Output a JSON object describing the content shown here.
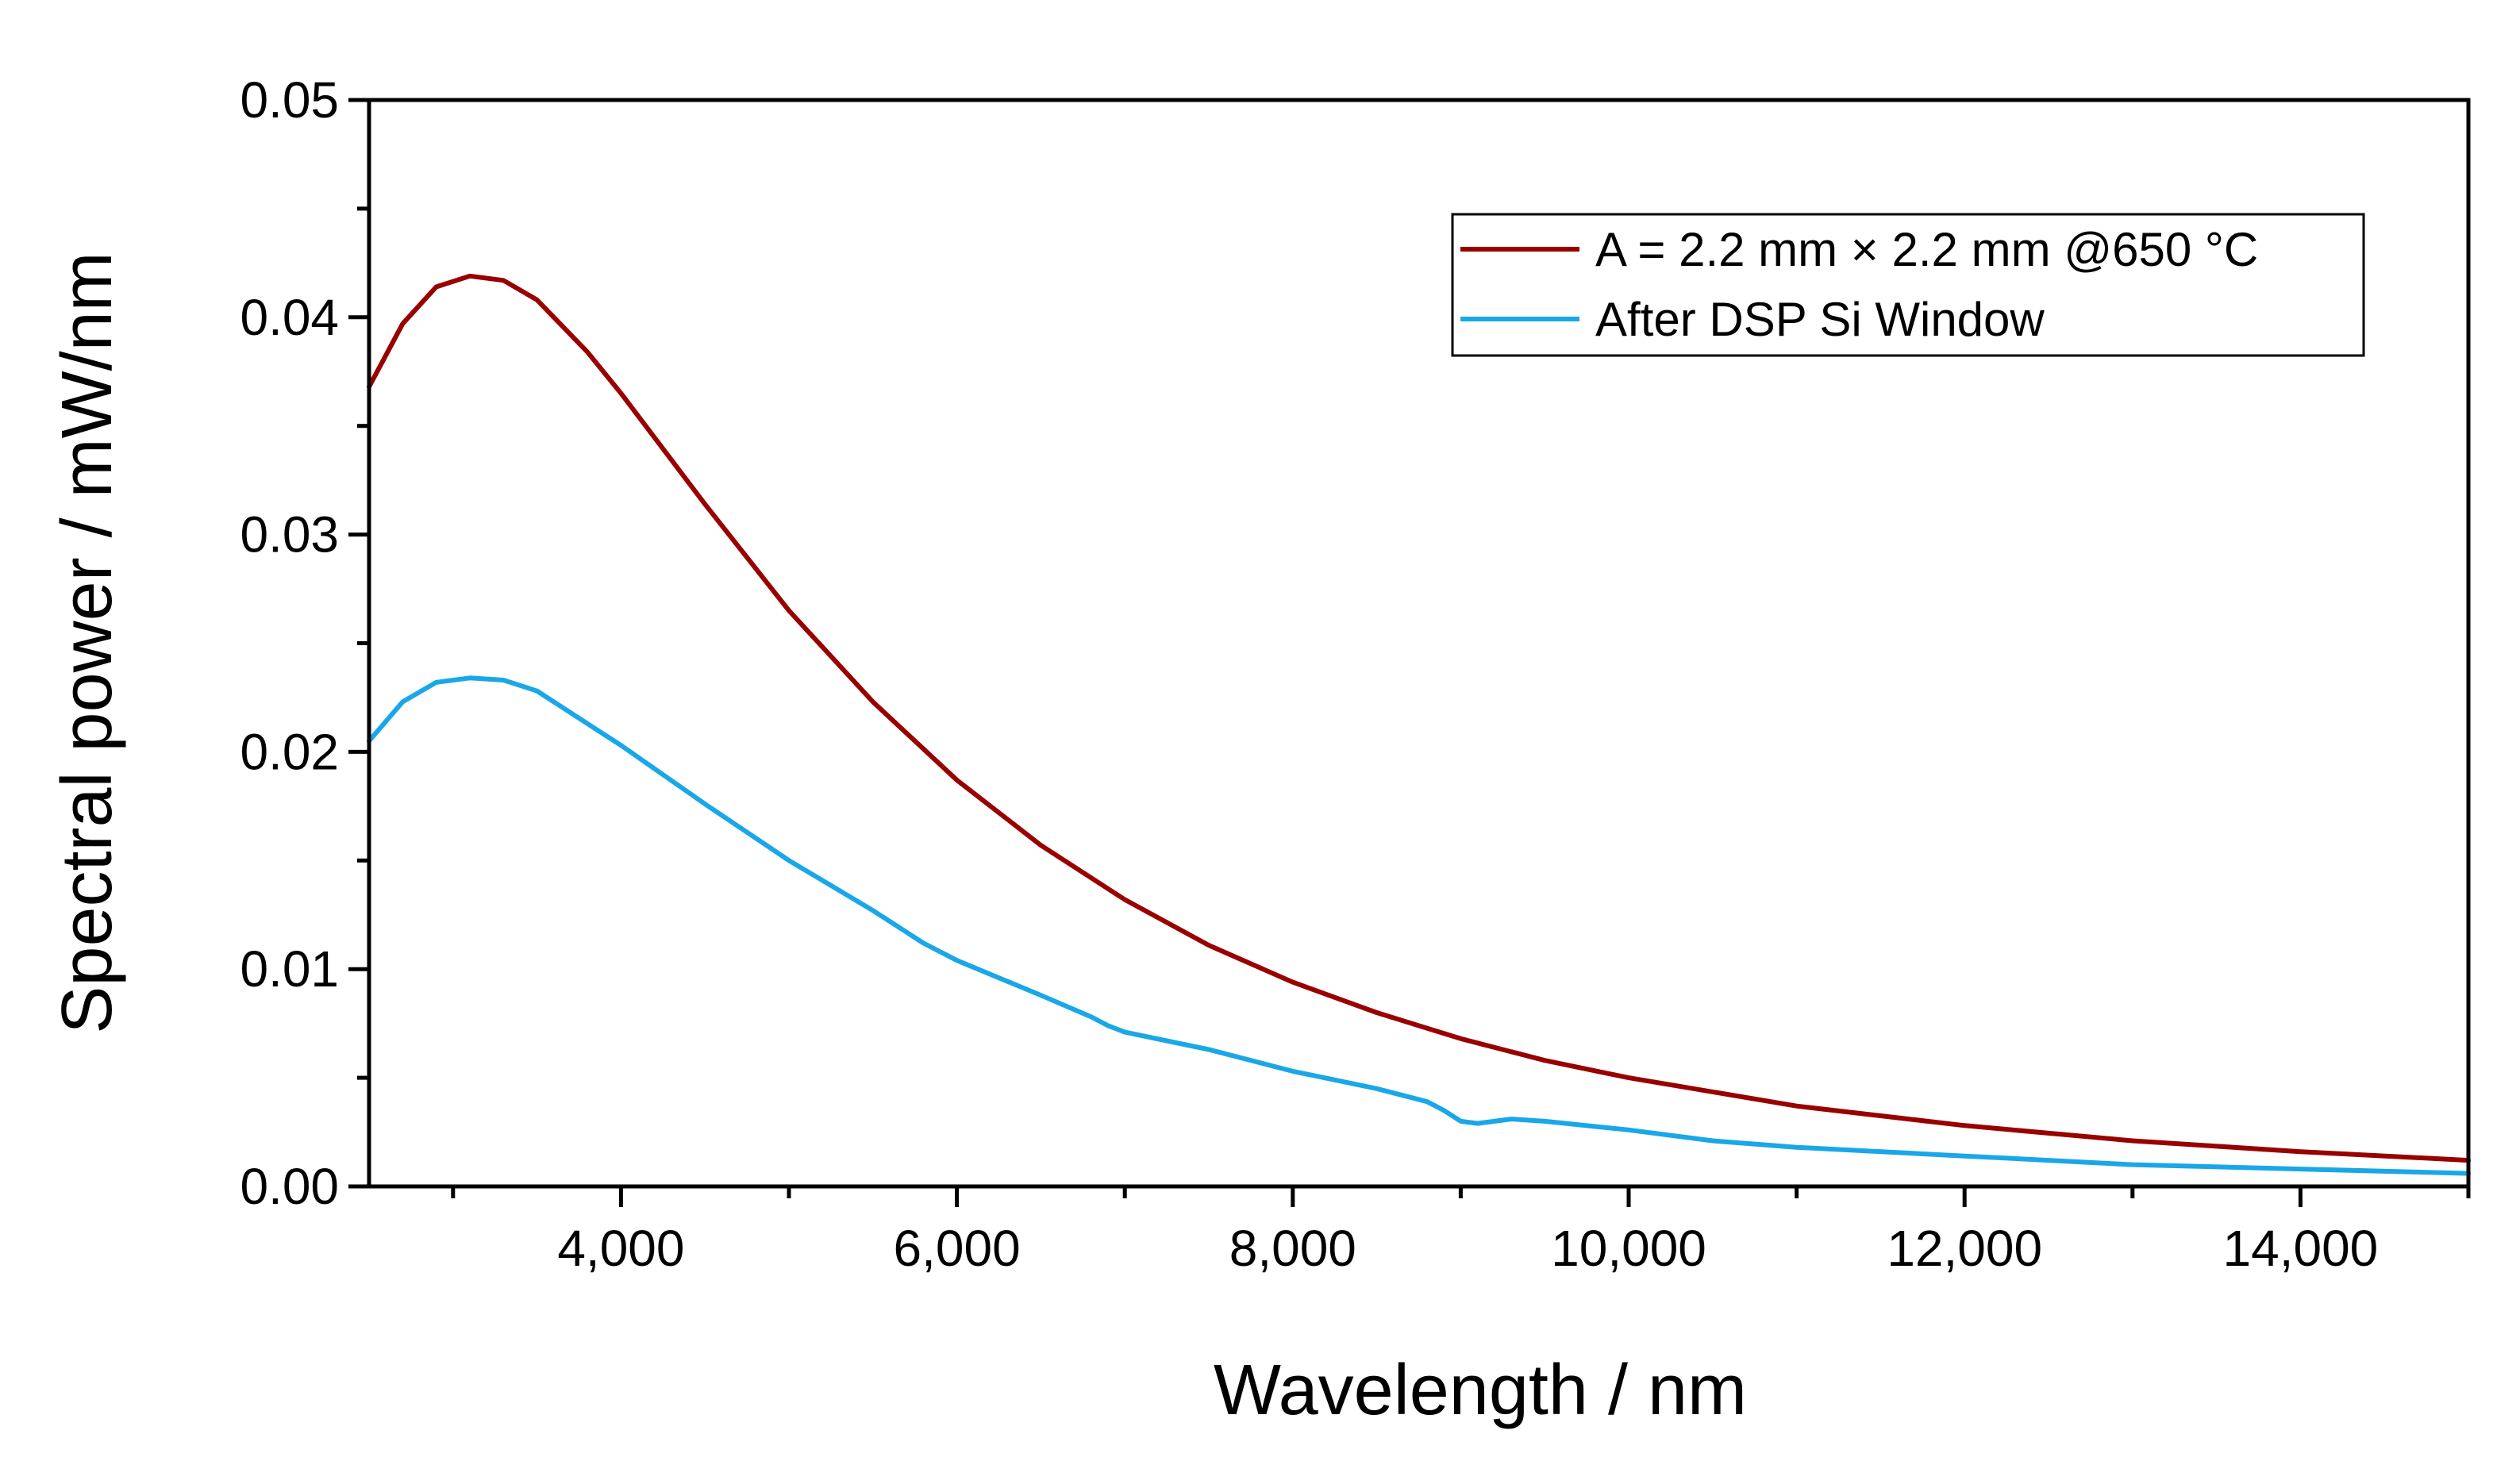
{
  "chart_data": {
    "type": "line",
    "title": "",
    "xlabel": "Wavelength / nm",
    "ylabel": "Spectral power / mW/nm",
    "xlim": [
      2500,
      15000
    ],
    "ylim": [
      0,
      0.05
    ],
    "x_major_ticks": [
      4000,
      6000,
      8000,
      10000,
      12000,
      14000
    ],
    "x_tick_labels": [
      "4,000",
      "6,000",
      "8,000",
      "10,000",
      "12,000",
      "14,000"
    ],
    "x_minor_ticks": [
      3000,
      5000,
      7000,
      9000,
      11000,
      13000,
      15000
    ],
    "y_major_ticks": [
      0,
      0.01,
      0.02,
      0.03,
      0.04,
      0.05
    ],
    "y_tick_labels": [
      "0.00",
      "0.01",
      "0.02",
      "0.03",
      "0.04",
      "0.05"
    ],
    "y_minor_ticks": [
      0.005,
      0.015,
      0.025,
      0.035,
      0.045
    ],
    "grid": false,
    "legend_position": "top-right",
    "series": [
      {
        "name": "A = 2.2 mm × 2.2 mm @650 °C",
        "color": "#990000",
        "x": [
          2500,
          2700,
          2900,
          3100,
          3300,
          3500,
          3800,
          4000,
          4500,
          5000,
          5500,
          6000,
          6500,
          7000,
          7500,
          8000,
          8500,
          9000,
          9500,
          10000,
          11000,
          12000,
          13000,
          14000,
          15000
        ],
        "y": [
          0.0368,
          0.0397,
          0.0414,
          0.0419,
          0.0417,
          0.0408,
          0.0384,
          0.0365,
          0.0314,
          0.0265,
          0.0223,
          0.0187,
          0.0157,
          0.0132,
          0.0111,
          0.0094,
          0.008,
          0.0068,
          0.0058,
          0.005,
          0.0037,
          0.0028,
          0.0021,
          0.0016,
          0.0012
        ]
      },
      {
        "name": "After DSP Si Window",
        "color": "#1aa7e8",
        "x": [
          2500,
          2700,
          2900,
          3100,
          3300,
          3500,
          4000,
          4500,
          5000,
          5500,
          5800,
          6000,
          6500,
          6800,
          6900,
          7000,
          7500,
          8000,
          8500,
          8800,
          8900,
          9000,
          9100,
          9300,
          9500,
          10000,
          10500,
          11000,
          12000,
          12500,
          13000,
          14000,
          15000
        ],
        "y": [
          0.0205,
          0.0223,
          0.0232,
          0.0234,
          0.0233,
          0.0228,
          0.0203,
          0.0176,
          0.015,
          0.0127,
          0.0112,
          0.0104,
          0.0088,
          0.0078,
          0.0074,
          0.0071,
          0.0063,
          0.0053,
          0.0045,
          0.0039,
          0.0035,
          0.003,
          0.0029,
          0.0031,
          0.003,
          0.0026,
          0.0021,
          0.0018,
          0.0014,
          0.0012,
          0.001,
          0.0008,
          0.0006
        ]
      }
    ]
  }
}
